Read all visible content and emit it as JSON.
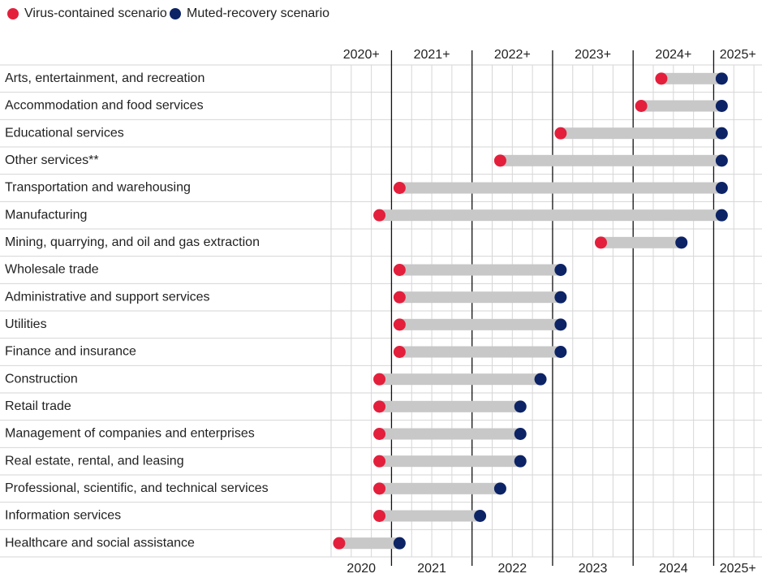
{
  "chart_data": {
    "type": "dumbbell",
    "categories": [
      "Arts, entertainment, and recreation",
      "Accommodation and food services",
      "Educational services",
      "Other services**",
      "Transportation and warehousing",
      "Manufacturing",
      "Mining, quarrying, and oil and gas extraction",
      "Wholesale trade",
      "Administrative and support services",
      "Utilities",
      "Finance and insurance",
      "Construction",
      "Retail trade",
      "Management of companies and enterprises",
      "Real estate, rental, and leasing",
      "Professional, scientific, and technical services",
      "Information services",
      "Healthcare and social assistance"
    ],
    "series": [
      {
        "name": "Virus-contained scenario",
        "color": "#e31f3c",
        "values": [
          2024.35,
          2024.1,
          2023.1,
          2022.35,
          2021.1,
          2020.85,
          2023.6,
          2021.1,
          2021.1,
          2021.1,
          2021.1,
          2020.85,
          2020.85,
          2020.85,
          2020.85,
          2020.85,
          2020.85,
          2020.35
        ]
      },
      {
        "name": "Muted-recovery scenario",
        "color": "#0c2366",
        "values": [
          2025.1,
          2025.1,
          2025.1,
          2025.1,
          2025.1,
          2025.1,
          2024.6,
          2023.1,
          2023.1,
          2023.1,
          2023.1,
          2022.85,
          2022.6,
          2022.6,
          2022.6,
          2022.35,
          2022.1,
          2021.1
        ]
      }
    ],
    "range_color": "#c8c8c8",
    "xlim": [
      2020.25,
      2025.6
    ],
    "xticks": [
      2020,
      2021,
      2022,
      2023,
      2024,
      {
        "value": 2025,
        "label": "2025+"
      }
    ],
    "xticks_top": [
      "2020+",
      "2021+",
      "2022+",
      "2023+",
      "2024+",
      "2025+"
    ],
    "minor_grid": true,
    "legend": "top-left"
  }
}
